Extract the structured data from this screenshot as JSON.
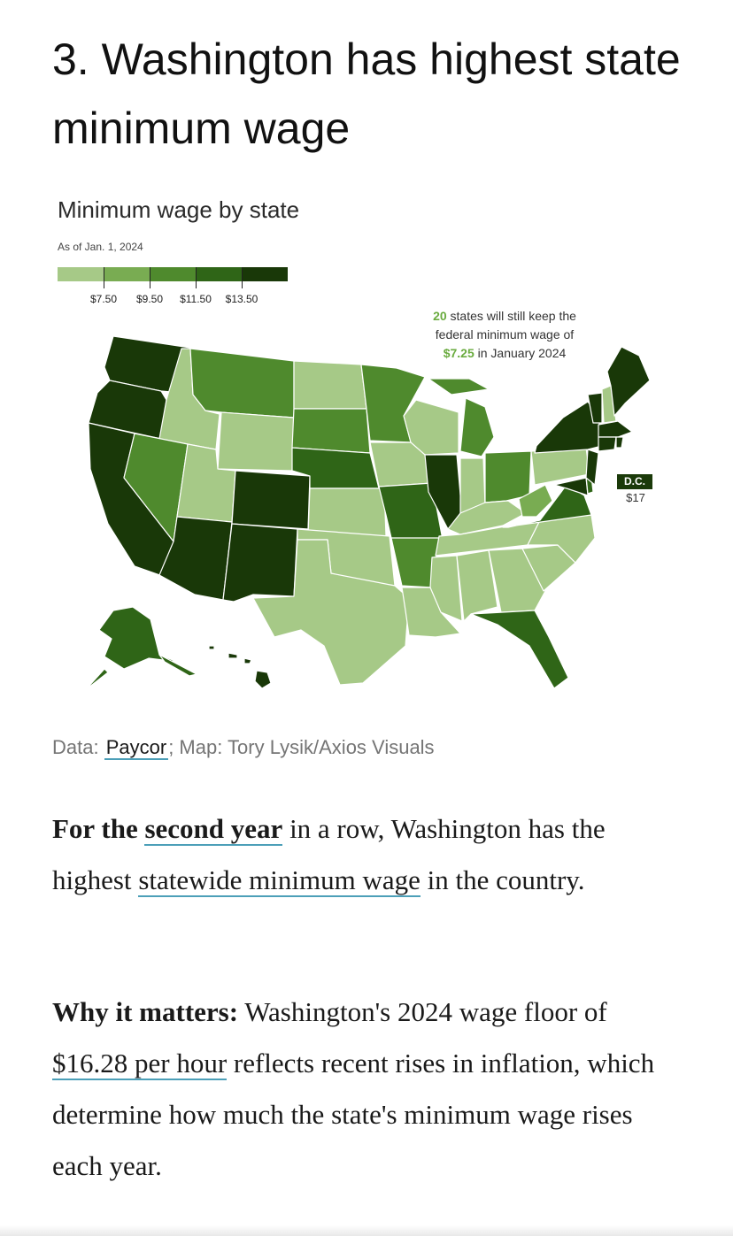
{
  "article": {
    "headline": "3. Washington has highest state minimum wage",
    "paragraph1": {
      "lead": "For the",
      "link1": "second year",
      "mid": " in a row, Washington has the highest ",
      "link2": "statewide minimum wage",
      "tail": " in the country."
    },
    "paragraph2": {
      "lead": "Why it matters:",
      "pre": " Washington's 2024 wage floor of ",
      "link": "$16.28 per hour",
      "tail": " reflects recent rises in inflation, which determine how much the state's minimum wage rises each year."
    }
  },
  "map": {
    "title": "Minimum wage by state",
    "subtitle": "As of Jan. 1, 2024",
    "legend": {
      "colors": [
        "#a6c987",
        "#79ac52",
        "#4f8a2d",
        "#2f6517",
        "#193808"
      ],
      "labels": [
        "$7.50",
        "$9.50",
        "$11.50",
        "$13.50"
      ]
    },
    "annotation": {
      "count": "20",
      "line1": " states will still keep the",
      "line2": "federal minimum wage of",
      "wage": "$7.25",
      "line3": " in January 2024"
    },
    "dc": {
      "label": "D.C.",
      "value": "$17"
    }
  },
  "credit": {
    "prefix": "Data: ",
    "source": "Paycor",
    "suffix": "; Map: Tory Lysik/Axios Visuals"
  }
}
